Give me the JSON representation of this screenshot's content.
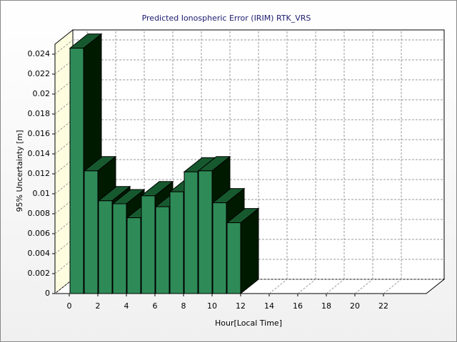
{
  "chart_data": {
    "type": "bar3d",
    "title": "Predicted Ionospheric Error (IRIM) RTK_VRS",
    "x_label": "Hour[Local Time]",
    "y_label": "95% Uncertainty [m]",
    "x": [
      0,
      1,
      2,
      3,
      4,
      5,
      6,
      7,
      8,
      9,
      10,
      11
    ],
    "values": [
      0.0246,
      0.0123,
      0.0093,
      0.009,
      0.0076,
      0.0098,
      0.0087,
      0.0102,
      0.0122,
      0.0123,
      0.0091,
      0.0071
    ],
    "color": "#2e8b57",
    "xlim": [
      -1,
      25
    ],
    "xticks": [
      0,
      2,
      4,
      6,
      8,
      10,
      12,
      14,
      16,
      18,
      20,
      22
    ],
    "ylim": [
      0,
      0.025
    ],
    "yticks": [
      0,
      0.002,
      0.004,
      0.006,
      0.008,
      0.01,
      0.012,
      0.014,
      0.016,
      0.018,
      0.02,
      0.022,
      0.024
    ],
    "grid": true
  }
}
